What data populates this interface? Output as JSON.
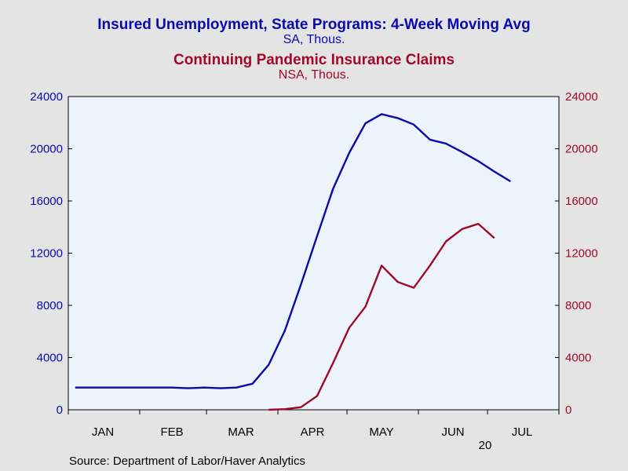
{
  "chart_data": {
    "type": "line",
    "titles": [
      {
        "text": "Insured Unemployment, State Programs: 4-Week Moving Avg",
        "sub": "SA, Thous.",
        "color": "#0a0aa8"
      },
      {
        "text": "Continuing Pandemic Insurance Claims",
        "sub": "NSA, Thous.",
        "color": "#a00a2a"
      }
    ],
    "x_months": [
      "JAN",
      "FEB",
      "MAR",
      "APR",
      "MAY",
      "JUN",
      "JUL"
    ],
    "x_year_label": "20",
    "x_range": [
      "2020-01-01",
      "2020-08-01"
    ],
    "y_left": {
      "min": 0,
      "max": 24000,
      "ticks": [
        0,
        4000,
        8000,
        12000,
        16000,
        20000,
        24000
      ],
      "color": "#0a0aa8"
    },
    "y_right": {
      "min": 0,
      "max": 24000,
      "ticks": [
        0,
        4000,
        8000,
        12000,
        16000,
        20000,
        24000
      ],
      "color": "#a00a2a"
    },
    "series": [
      {
        "name": "Insured Unemployment, State Programs: 4-Week Moving Avg",
        "axis": "left",
        "color": "#0a0aa8",
        "points": [
          [
            "2020-01-04",
            1700
          ],
          [
            "2020-01-11",
            1700
          ],
          [
            "2020-01-18",
            1700
          ],
          [
            "2020-01-25",
            1700
          ],
          [
            "2020-02-01",
            1700
          ],
          [
            "2020-02-08",
            1700
          ],
          [
            "2020-02-15",
            1700
          ],
          [
            "2020-02-22",
            1650
          ],
          [
            "2020-02-29",
            1700
          ],
          [
            "2020-03-07",
            1650
          ],
          [
            "2020-03-14",
            1700
          ],
          [
            "2020-03-21",
            2000
          ],
          [
            "2020-03-28",
            3450
          ],
          [
            "2020-04-04",
            6050
          ],
          [
            "2020-04-11",
            9600
          ],
          [
            "2020-04-18",
            13300
          ],
          [
            "2020-04-25",
            16950
          ],
          [
            "2020-05-02",
            19700
          ],
          [
            "2020-05-09",
            21950
          ],
          [
            "2020-05-16",
            22650
          ],
          [
            "2020-05-23",
            22350
          ],
          [
            "2020-05-30",
            21850
          ],
          [
            "2020-06-06",
            20700
          ],
          [
            "2020-06-13",
            20400
          ],
          [
            "2020-06-20",
            19750
          ],
          [
            "2020-06-27",
            19050
          ],
          [
            "2020-07-04",
            18250
          ],
          [
            "2020-07-11",
            17500
          ]
        ]
      },
      {
        "name": "Continuing Pandemic Insurance Claims",
        "axis": "right",
        "color": "#a00a2a",
        "points": [
          [
            "2020-03-28",
            0
          ],
          [
            "2020-04-04",
            50
          ],
          [
            "2020-04-11",
            200
          ],
          [
            "2020-04-18",
            1050
          ],
          [
            "2020-04-25",
            3600
          ],
          [
            "2020-05-02",
            6300
          ],
          [
            "2020-05-09",
            7900
          ],
          [
            "2020-05-16",
            11050
          ],
          [
            "2020-05-23",
            9800
          ],
          [
            "2020-05-30",
            9350
          ],
          [
            "2020-06-06",
            11050
          ],
          [
            "2020-06-13",
            12900
          ],
          [
            "2020-06-20",
            13850
          ],
          [
            "2020-06-27",
            14250
          ],
          [
            "2020-07-04",
            13150
          ]
        ]
      }
    ],
    "grid": false,
    "source": "Source:  Department of Labor/Haver Analytics"
  },
  "colors": {
    "background": "#e4e4e4",
    "plot_background": "#eef4fd",
    "axis": "#000000"
  }
}
